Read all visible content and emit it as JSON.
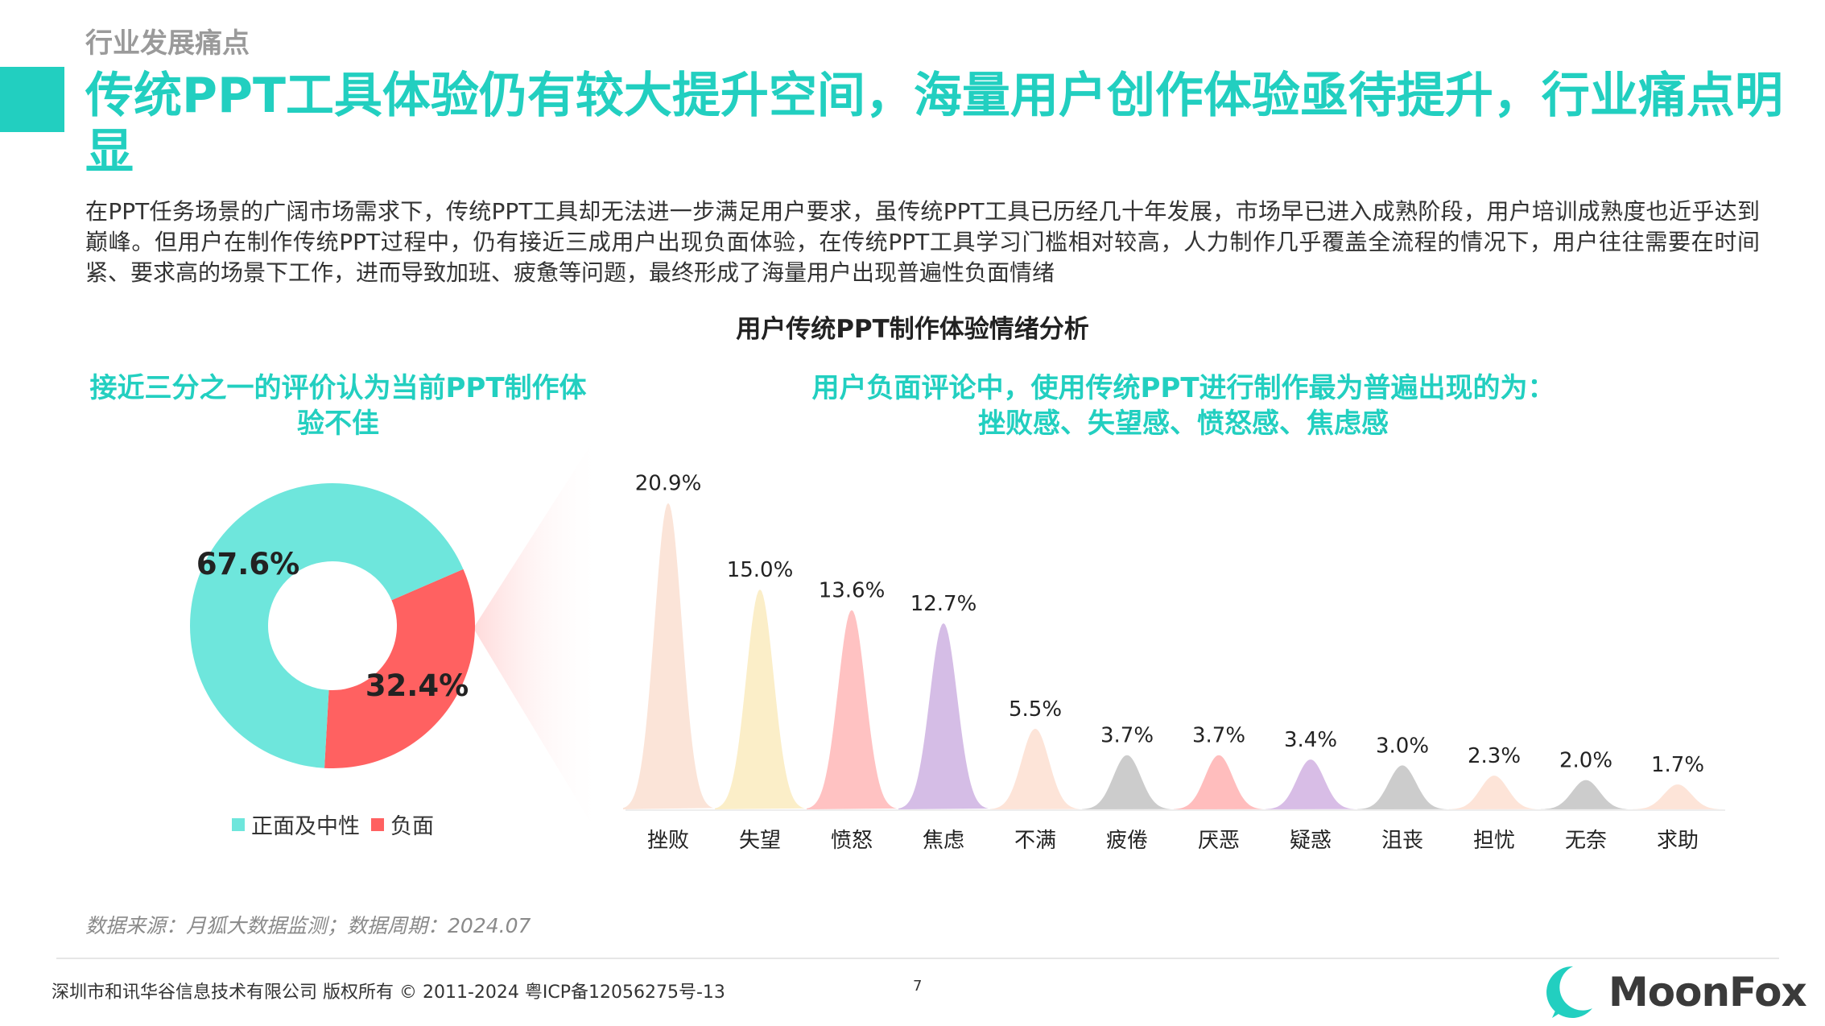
{
  "section": "行业发展痛点",
  "title": "传统PPT工具体验仍有较大提升空间，海量用户创作体验亟待提升，行业痛点明显",
  "paragraph": "在PPT任务场景的广阔市场需求下，传统PPT工具却无法进一步满足用户要求，虽传统PPT工具已历经几十年发展，市场早已进入成熟阶段，用户培训成熟度也近乎达到巅峰。但用户在制作传统PPT过程中，仍有接近三成用户出现负面体验，在传统PPT工具学习门槛相对较高，人力制作几乎覆盖全流程的情况下，用户往往需要在时间紧、要求高的场景下工作，进而导致加班、疲惫等问题，最终形成了海量用户出现普遍性负面情绪",
  "chart_title": "用户传统PPT制作体验情绪分析",
  "left_subtitle": "接近三分之一的评价认为当前PPT制作体验不佳",
  "right_subtitle_1": "用户负面评论中，使用传统PPT进行制作最为普遍出现的为：",
  "right_subtitle_2": "挫败感、失望感、愤怒感、焦虑感",
  "source": "数据来源：月狐大数据监测；数据周期：2024.07",
  "footer": "深圳市和讯华谷信息技术有限公司 版权所有 © 2011-2024 粤ICP备12056275号-13",
  "page_number": "7",
  "logo_text": "MoonFox",
  "colors": {
    "accent": "#22cfc0",
    "positive": "#6ee6dc",
    "negative": "#ff6161"
  },
  "chart_data": [
    {
      "type": "pie",
      "variant": "donut",
      "categories": [
        "正面及中性",
        "负面"
      ],
      "values": [
        67.6,
        32.4
      ],
      "labels": [
        "67.6%",
        "32.4%"
      ],
      "colors": [
        "#6ee6dc",
        "#ff6161"
      ],
      "legend": "bottom"
    },
    {
      "type": "area",
      "shape": "peaks",
      "categories": [
        "挫败",
        "失望",
        "愤怒",
        "焦虑",
        "不满",
        "疲倦",
        "厌恶",
        "疑惑",
        "沮丧",
        "担忧",
        "无奈",
        "求助"
      ],
      "values": [
        20.9,
        15.0,
        13.6,
        12.7,
        5.5,
        3.7,
        3.7,
        3.4,
        3.0,
        2.3,
        2.0,
        1.7
      ],
      "labels": [
        "20.9%",
        "15.0%",
        "13.6%",
        "12.7%",
        "5.5%",
        "3.7%",
        "3.7%",
        "3.4%",
        "3.0%",
        "2.3%",
        "2.0%",
        "1.7%"
      ],
      "colors": [
        "#fbe4d8",
        "#fbeec8",
        "#ffc2c2",
        "#d5bde6",
        "#fde4d8",
        "#cccccc",
        "#ffbdbd",
        "#d8bde6",
        "#cccccc",
        "#fde4d8",
        "#cccccc",
        "#fde4d8"
      ]
    }
  ]
}
